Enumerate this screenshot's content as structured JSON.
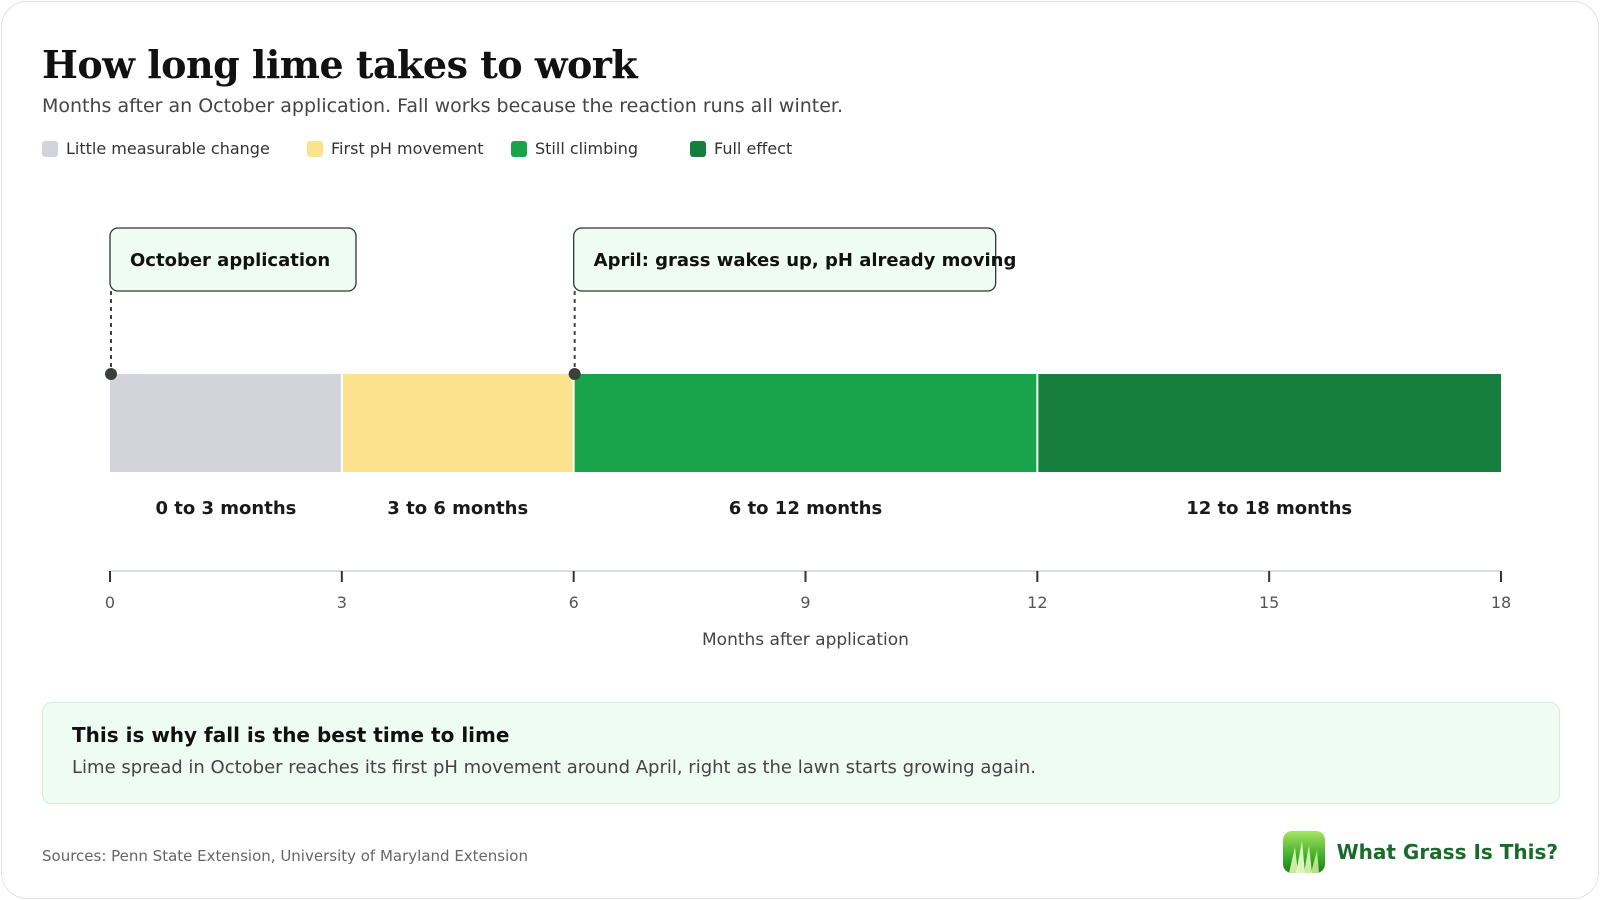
{
  "header": {
    "title": "How long lime takes to work",
    "subtitle": "Months after an October application. Fall works because the reaction runs all winter."
  },
  "legend": [
    {
      "label": "Little measurable change",
      "color": "#d2d3db"
    },
    {
      "label": "First pH movement",
      "color": "#fbe38e"
    },
    {
      "label": "Still climbing",
      "color": "#19a34a"
    },
    {
      "label": "Full effect",
      "color": "#177f3d"
    }
  ],
  "chart_data": {
    "type": "bar",
    "orientation": "horizontal-stacked-timeline",
    "segments": [
      {
        "start": 0,
        "end": 3,
        "label": "0 to 3 months",
        "stage": "Little measurable change",
        "color": "#d2d3db"
      },
      {
        "start": 3,
        "end": 6,
        "label": "3 to 6 months",
        "stage": "First pH movement",
        "color": "#fbe38e"
      },
      {
        "start": 6,
        "end": 12,
        "label": "6 to 12 months",
        "stage": "Still climbing",
        "color": "#19a34a"
      },
      {
        "start": 12,
        "end": 18,
        "label": "12 to 18 months",
        "stage": "Full effect",
        "color": "#177f3d"
      }
    ],
    "annotations": [
      {
        "at": 0,
        "text": "October application"
      },
      {
        "at": 6,
        "text": "April: grass wakes up, pH already moving"
      }
    ],
    "xticks": [
      0,
      3,
      6,
      9,
      12,
      15,
      18
    ],
    "xlim": [
      0,
      18
    ],
    "xlabel": "Months after application",
    "grid": false
  },
  "insight": {
    "title": "This is why fall is the best time to lime",
    "body": "Lime spread in October reaches its first pH movement around April, right as the lawn starts growing again."
  },
  "footer": {
    "sources": "Sources: Penn State Extension, University of Maryland Extension",
    "brand": "What Grass Is This?"
  }
}
